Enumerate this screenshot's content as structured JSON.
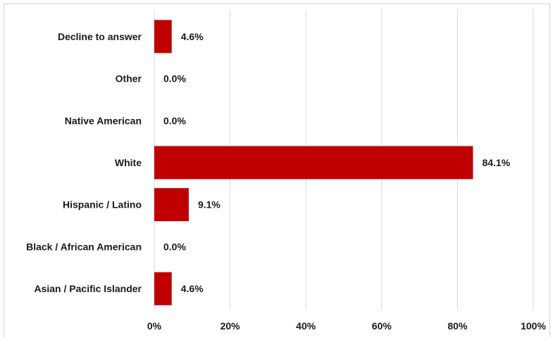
{
  "chart_data": {
    "type": "bar",
    "orientation": "horizontal",
    "categories": [
      "Decline to answer",
      "Other",
      "Native American",
      "White",
      "Hispanic / Latino",
      "Black / African American",
      "Asian / Pacific Islander"
    ],
    "values": [
      4.6,
      0.0,
      0.0,
      84.1,
      9.1,
      0.0,
      4.6
    ],
    "data_labels": [
      "4.6%",
      "0.0%",
      "0.0%",
      "84.1%",
      "9.1%",
      "0.0%",
      "4.6%"
    ],
    "xlim": [
      0,
      100
    ],
    "x_ticks": [
      "0%",
      "20%",
      "40%",
      "60%",
      "80%",
      "100%"
    ],
    "title": "",
    "xlabel": "",
    "ylabel": "",
    "grid": "vertical",
    "legend": "none",
    "bar_color": "#c00000",
    "grid_color": "#d9d9d9"
  }
}
